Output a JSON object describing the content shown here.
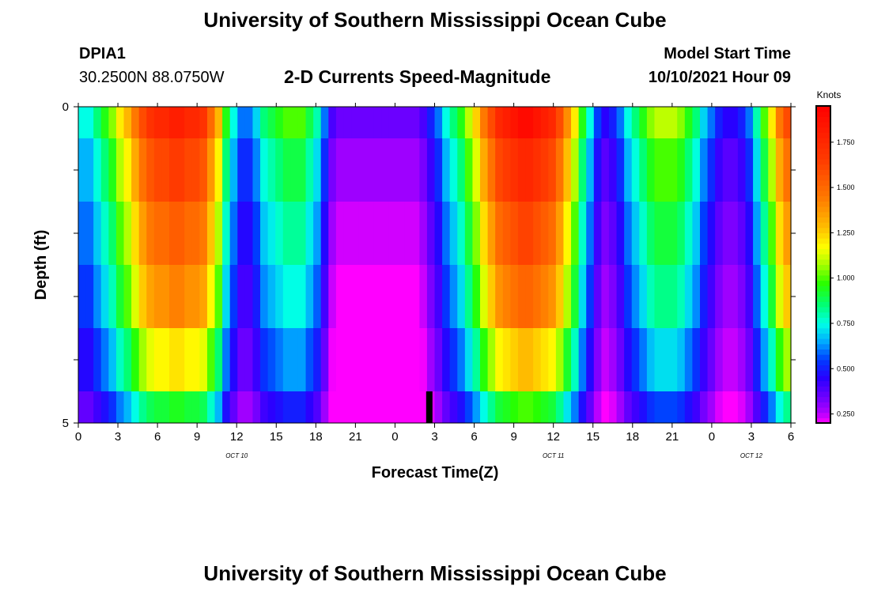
{
  "header": {
    "title": "University of Southern Mississippi Ocean Cube",
    "station_id": "DPIA1",
    "coords": "30.2500N  88.0750W",
    "subtitle": "2-D Currents Speed-Magnitude",
    "model_label": "Model Start Time",
    "model_time": "10/10/2021 Hour 09"
  },
  "footer": {
    "title": "University of Southern Mississippi Ocean Cube"
  },
  "chart_data": {
    "type": "heatmap",
    "xlabel": "Forecast Time(Z)",
    "ylabel": "Depth (ft)",
    "colorbar_label": "Knots",
    "x_ticks": [
      "0",
      "3",
      "6",
      "9",
      "12",
      "15",
      "18",
      "21",
      "0",
      "3",
      "6",
      "9",
      "12",
      "15",
      "18",
      "21",
      "0",
      "3",
      "6"
    ],
    "y_ticks": [
      "0",
      "5"
    ],
    "day_labels": [
      "OCT 10",
      "OCT 11",
      "OCT 12"
    ],
    "x_range_hours": [
      0,
      54
    ],
    "depth_range_ft": [
      0,
      5
    ],
    "colorbar_ticks": [
      "0.250",
      "0.500",
      "0.750",
      "1.000",
      "1.250",
      "1.500",
      "1.750"
    ],
    "colorbar_range": [
      0.2,
      1.95
    ],
    "depth_bands_ft": [
      [
        0,
        0.5
      ],
      [
        0.5,
        1.5
      ],
      [
        1.5,
        2.5
      ],
      [
        2.5,
        3.5
      ],
      [
        3.5,
        4.5
      ],
      [
        4.5,
        5
      ]
    ],
    "speed_profile_surface_knots": [
      0.75,
      0.75,
      0.85,
      0.95,
      1.05,
      1.2,
      1.3,
      1.45,
      1.6,
      1.7,
      1.75,
      1.75,
      1.8,
      1.8,
      1.75,
      1.75,
      1.7,
      1.5,
      1.3,
      0.95,
      0.75,
      0.6,
      0.6,
      0.7,
      0.85,
      0.9,
      0.95,
      1.0,
      1.0,
      1.0,
      0.9,
      0.8,
      0.6,
      0.4,
      0.35,
      0.35,
      0.35,
      0.35,
      0.35,
      0.35,
      0.35,
      0.35,
      0.35,
      0.35,
      0.35,
      0.4,
      0.5,
      0.6,
      0.75,
      0.85,
      0.95,
      1.1,
      1.25,
      1.45,
      1.6,
      1.75,
      1.8,
      1.85,
      1.9,
      1.9,
      1.85,
      1.8,
      1.75,
      1.6,
      1.4,
      1.2,
      0.95,
      0.75,
      0.55,
      0.45,
      0.5,
      0.6,
      0.75,
      0.85,
      0.95,
      1.05,
      1.1,
      1.1,
      1.1,
      1.05,
      0.95,
      0.85,
      0.7,
      0.6,
      0.5,
      0.45,
      0.45,
      0.5,
      0.6,
      0.8,
      1.0,
      1.2,
      1.45,
      1.6
    ],
    "depth_scale_factors": [
      1.0,
      0.95,
      0.9,
      0.85,
      0.72,
      0.55
    ],
    "depth_offsets_knots": [
      0.0,
      -0.05,
      -0.08,
      -0.1,
      -0.08,
      -0.05
    ],
    "time_marker_hour": 26.6
  }
}
